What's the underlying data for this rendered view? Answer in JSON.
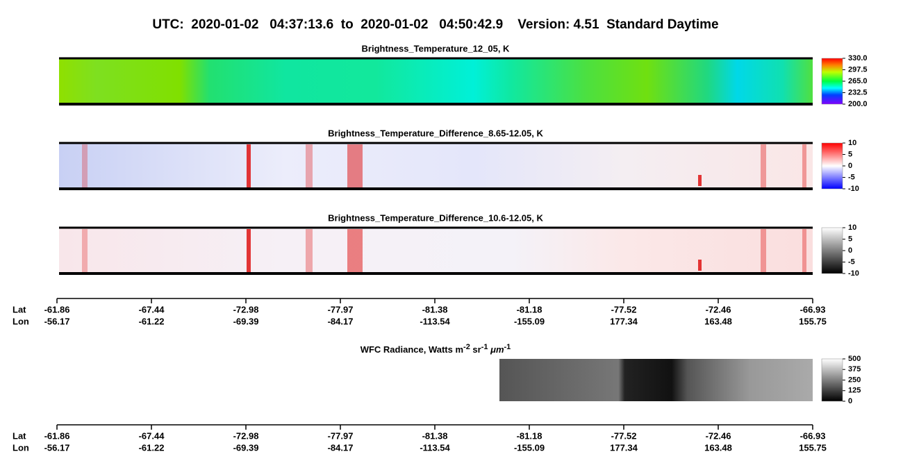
{
  "title": "UTC:  2020-01-02   04:37:13.6  to  2020-01-02   04:50:42.9    Version: 4.51  Standard Daytime",
  "panels": [
    {
      "title": "Brightness_Temperature_12_05, K",
      "colorbar": {
        "range": [
          200,
          330
        ],
        "ticks": [
          {
            "value": 330,
            "label": "330.0"
          },
          {
            "value": 297.5,
            "label": "297.5"
          },
          {
            "value": 265,
            "label": "265.0"
          },
          {
            "value": 232.5,
            "label": "232.5"
          },
          {
            "value": 200,
            "label": "200.0"
          }
        ]
      }
    },
    {
      "title": "Brightness_Temperature_Difference_8.65-12.05, K",
      "colorbar": {
        "range": [
          -10,
          10
        ],
        "ticks": [
          10,
          5,
          0,
          -5,
          -10
        ]
      }
    },
    {
      "title": "Brightness_Temperature_Difference_10.6-12.05, K",
      "colorbar": {
        "range": [
          -10,
          10
        ],
        "ticks": [
          10,
          5,
          0,
          -5,
          -10
        ]
      }
    }
  ],
  "radiance": {
    "title_parts": [
      "WFC Radiance, Watts m",
      "-2",
      " sr",
      "-1",
      " μm",
      "-1"
    ],
    "colorbar": {
      "range": [
        0,
        500
      ],
      "ticks": [
        500,
        375,
        250,
        125,
        0
      ]
    }
  },
  "axis": {
    "lat_label": "Lat",
    "lon_label": "Lon",
    "lat": [
      "-61.86",
      "-67.44",
      "-72.98",
      "-77.97",
      "-81.38",
      "-81.18",
      "-77.52",
      "-72.46",
      "-66.93"
    ],
    "lon": [
      "-56.17",
      "-61.22",
      "-69.39",
      "-84.17",
      "-113.54",
      "-155.09",
      "177.34",
      "163.48",
      "155.75"
    ]
  }
}
